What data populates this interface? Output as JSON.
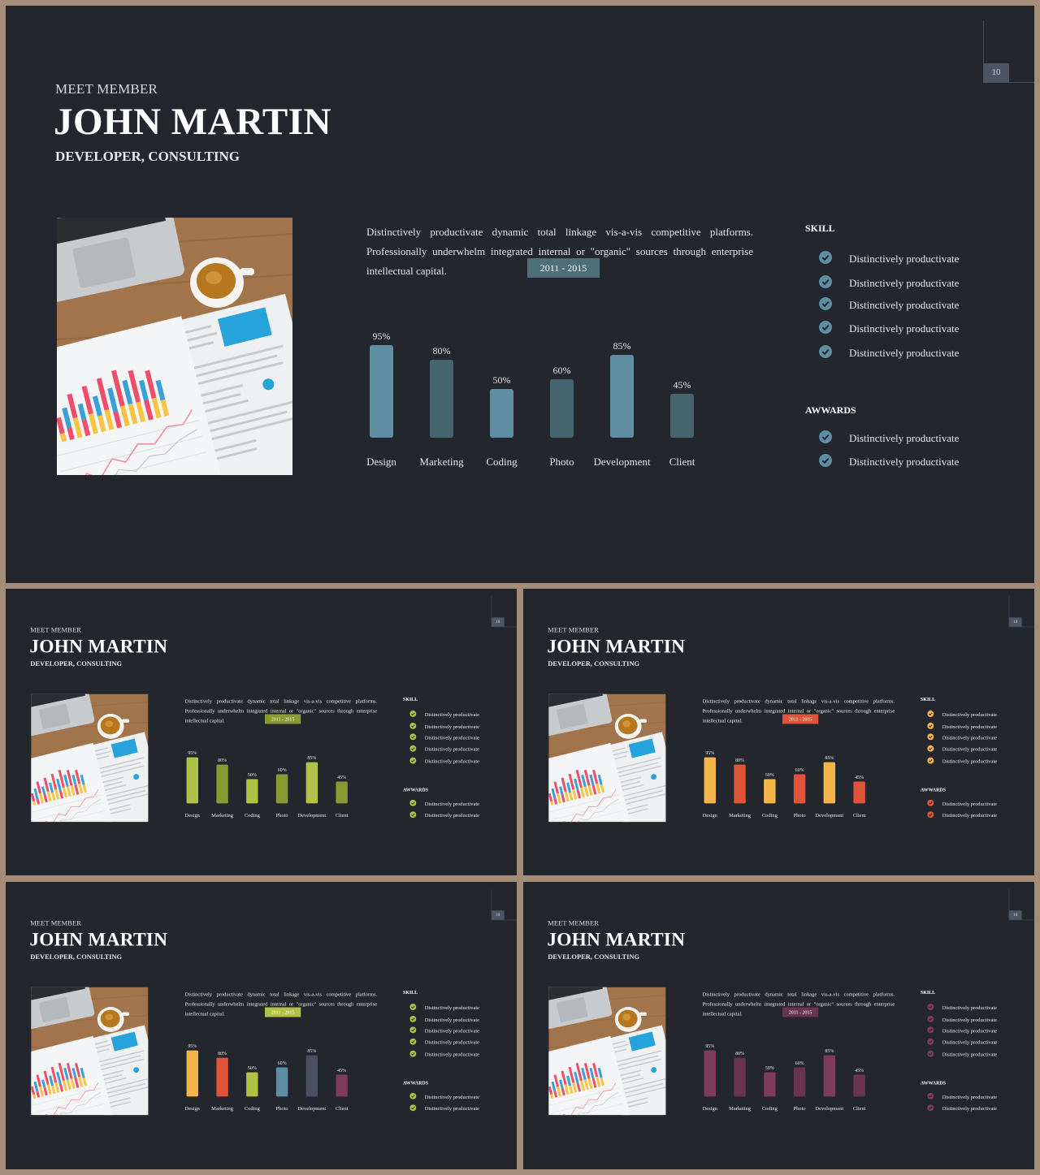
{
  "slide": {
    "page_number": "10",
    "kicker": "MEET MEMBER",
    "name": "JOHN MARTIN",
    "role": "DEVELOPER, CONSULTING",
    "description": "Distinctively productivate dynamic total linkage vis-a-vis competitive platforms. Professionally underwhelm integrated internal or \"organic\" sources through enterprise intellectual capital.",
    "period": "2011 - 2015",
    "skill_title": "SKILL",
    "skills": [
      "Distinctively productivate",
      "Distinctively productivate",
      "Distinctively productivate",
      "Distinctively productivate",
      "Distinctively productivate"
    ],
    "awards_title": "AWWARDS",
    "awards": [
      "Distinctively productivate",
      "Distinctively productivate"
    ]
  },
  "chart_data": {
    "type": "bar",
    "categories": [
      "Design",
      "Marketing",
      "Coding",
      "Photo",
      "Development",
      "Client"
    ],
    "values": [
      95,
      80,
      50,
      60,
      85,
      45
    ],
    "value_labels": [
      "95%",
      "80%",
      "50%",
      "60%",
      "85%",
      "45%"
    ],
    "ylim": [
      0,
      100
    ]
  },
  "variants": [
    {
      "name": "teal",
      "bar_colors": [
        "#5e8ea2",
        "#45656f",
        "#5e8ea2",
        "#45656f",
        "#5e8ea2",
        "#45656f"
      ],
      "period_color": "#4e6e78",
      "check_color": "#5e8ea2"
    },
    {
      "name": "green",
      "bar_colors": [
        "#b0c246",
        "#8a9a33",
        "#b0c246",
        "#8a9a33",
        "#b0c246",
        "#8a9a33"
      ],
      "period_color": "#8a9a33",
      "check_color": "#b0c246"
    },
    {
      "name": "orange",
      "bar_colors": [
        "#f4b54a",
        "#e0553a",
        "#f4b54a",
        "#e0553a",
        "#f4b54a",
        "#e0553a"
      ],
      "period_color": "#e0553a",
      "check_color": "#f4b54a",
      "award_check_color": "#e0553a"
    },
    {
      "name": "multi",
      "bar_colors": [
        "#f4b54a",
        "#e0553a",
        "#b0c246",
        "#5e8ea2",
        "#4b5060",
        "#7d3d58"
      ],
      "period_color": "#b0c246",
      "check_color": "#b0c246"
    },
    {
      "name": "plum",
      "bar_colors": [
        "#7d3d58",
        "#6a3450",
        "#7d3d58",
        "#6a3450",
        "#7d3d58",
        "#6a3450"
      ],
      "period_color": "#6a3450",
      "check_color": "#7d3d58"
    }
  ]
}
